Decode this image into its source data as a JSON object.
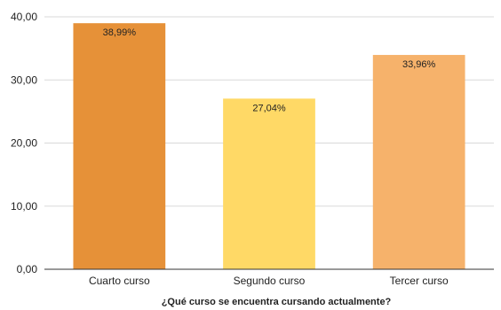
{
  "chart_data": {
    "type": "bar",
    "title": "",
    "xlabel": "¿Qué curso se encuentra cursando actualmente?",
    "ylabel": "",
    "categories": [
      "Cuarto curso",
      "Segundo curso",
      "Tercer curso"
    ],
    "values": [
      38.99,
      27.04,
      33.96
    ],
    "data_labels": [
      "38,99%",
      "27,04%",
      "33,96%"
    ],
    "colors": [
      "#E69138",
      "#FFD966",
      "#F6B26B"
    ],
    "ylim": [
      0,
      40
    ],
    "yticks": [
      0,
      10,
      20,
      30,
      40
    ],
    "ytick_labels": [
      "0,00",
      "10,00",
      "20,00",
      "30,00",
      "40,00"
    ],
    "grid": true,
    "legend": "none"
  }
}
